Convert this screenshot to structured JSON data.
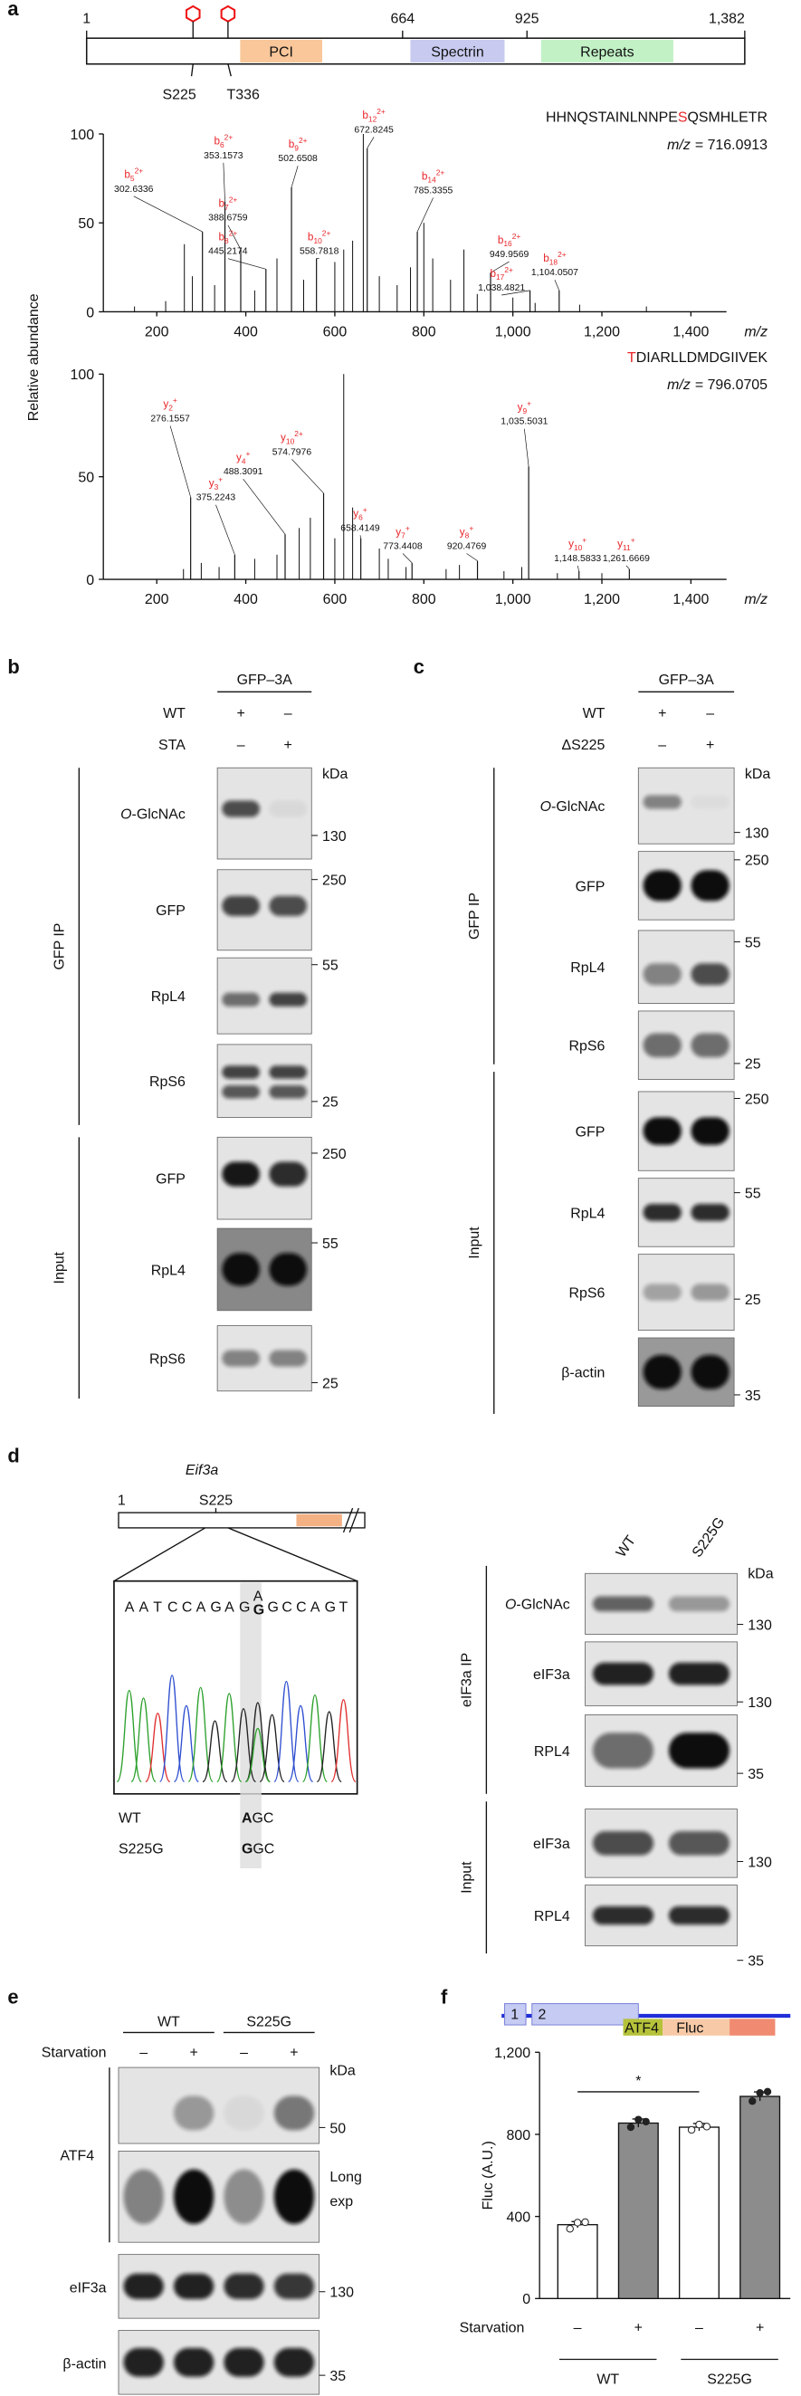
{
  "panel_a": {
    "label": "a",
    "protein_ticks": [
      1,
      664,
      925,
      {
        "value": 1382,
        "label": "1,382"
      }
    ],
    "domains": [
      "PCI",
      "Spectrin",
      "Repeats"
    ],
    "sites": [
      "S225",
      "T336"
    ],
    "y_label": "Relative abundance"
  },
  "chart_data": [
    {
      "type": "spectrum",
      "sequence": [
        "HHNQSTAINLNNPE",
        "S",
        "QSMHLETR"
      ],
      "highlight": 1,
      "precursor": [
        "m/z",
        "= 716.0913"
      ],
      "xlabel": "m/z",
      "xlim": [
        80,
        1480
      ],
      "ylim": [
        0,
        100
      ],
      "xticks": [
        200,
        400,
        600,
        800,
        {
          "value": 1000,
          "label": "1,000"
        },
        {
          "value": 1200,
          "label": "1,200"
        },
        {
          "value": 1400,
          "label": "1,400"
        }
      ],
      "yticks": [
        0,
        50,
        100
      ],
      "ions": [
        [
          "b",
          "5",
          "2+"
        ],
        [
          "b",
          "6",
          "2+"
        ],
        [
          "b",
          "7",
          "2+"
        ],
        [
          "b",
          "8",
          "2+"
        ],
        [
          "b",
          "9",
          "2+"
        ],
        [
          "b",
          "10",
          "2+"
        ],
        [
          "b",
          "12",
          "2+"
        ],
        [
          "b",
          "14",
          "2+"
        ],
        [
          "b",
          "16",
          "2+"
        ],
        [
          "b",
          "17",
          "2+"
        ],
        [
          "b",
          "18",
          "2+"
        ]
      ],
      "x": [
        302.6336,
        353.1573,
        388.6759,
        445.2174,
        502.6508,
        558.7818,
        672.8245,
        785.3355,
        949.9569,
        {
          "value": 1038.4821,
          "label": "1,038.4821"
        },
        {
          "value": 1104.0507,
          "label": "1,104.0507"
        }
      ],
      "values": [
        45,
        62,
        35,
        24,
        70,
        30,
        92,
        45,
        22,
        12,
        12
      ],
      "other_peaks_x": [
        150,
        220,
        262,
        280,
        330,
        420,
        470,
        530,
        600,
        620,
        640,
        664,
        700,
        740,
        770,
        800,
        820,
        860,
        890,
        920,
        1000,
        1050,
        1150,
        1300
      ],
      "other_peaks_values": [
        3,
        6,
        38,
        20,
        15,
        12,
        30,
        18,
        28,
        35,
        40,
        100,
        20,
        15,
        25,
        50,
        30,
        18,
        35,
        10,
        8,
        5,
        4,
        3
      ]
    },
    {
      "type": "spectrum",
      "sequence": [
        "T",
        "DIARLLDMDGIIVEK"
      ],
      "highlight": 0,
      "precursor": [
        "m/z",
        "= 796.0705"
      ],
      "xlabel": "m/z",
      "xlim": [
        80,
        1480
      ],
      "ylim": [
        0,
        100
      ],
      "xticks": [
        200,
        400,
        600,
        800,
        {
          "value": 1000,
          "label": "1,000"
        },
        {
          "value": 1200,
          "label": "1,200"
        },
        {
          "value": 1400,
          "label": "1,400"
        }
      ],
      "yticks": [
        0,
        50,
        100
      ],
      "ions": [
        [
          "y",
          "2",
          "+"
        ],
        [
          "y",
          "3",
          "+"
        ],
        [
          "y",
          "4",
          "+"
        ],
        [
          "y",
          "10",
          "2+"
        ],
        [
          "y",
          "6",
          "+"
        ],
        [
          "y",
          "7",
          "+"
        ],
        [
          "y",
          "8",
          "+"
        ],
        [
          "y",
          "9",
          "+"
        ],
        [
          "y",
          "10",
          "+"
        ],
        [
          "y",
          "11",
          "+"
        ]
      ],
      "x": [
        276.1557,
        375.2243,
        488.3091,
        574.7976,
        658.4149,
        773.4408,
        920.4769,
        {
          "value": 1035.5031,
          "label": "1,035.5031"
        },
        {
          "value": 1148.5833,
          "label": "1,148.5833"
        },
        {
          "value": 1261.6669,
          "label": "1,261.6669"
        }
      ],
      "values": [
        40,
        12,
        22,
        42,
        20,
        8,
        9,
        55,
        4,
        5
      ],
      "other_peaks_x": [
        260,
        300,
        340,
        420,
        470,
        520,
        545,
        600,
        620,
        640,
        700,
        720,
        760,
        850,
        880,
        980,
        1020,
        1100,
        1200
      ],
      "other_peaks_values": [
        5,
        8,
        6,
        10,
        12,
        25,
        30,
        20,
        100,
        35,
        15,
        10,
        6,
        5,
        7,
        4,
        6,
        3,
        3
      ]
    },
    {
      "type": "bar",
      "ylabel": "Fluc (A.U.)",
      "categories": [
        "–",
        "+",
        "–",
        "+"
      ],
      "groups": [
        "WT",
        "S225G"
      ],
      "row_label": "Starvation",
      "values": [
        360,
        855,
        835,
        985
      ],
      "errors": [
        15,
        20,
        18,
        22
      ],
      "points": [
        [
          340,
          370,
          372
        ],
        [
          835,
          872,
          862
        ],
        [
          822,
          848,
          838
        ],
        [
          962,
          1002,
          1008
        ]
      ],
      "colors": [
        "#ffffff",
        "#8c8c8c",
        "#ffffff",
        "#8c8c8c"
      ],
      "ylim": [
        0,
        1200
      ],
      "yticks": [
        0,
        400,
        800,
        {
          "value": 1200,
          "label": "1,200"
        }
      ],
      "significance": "*"
    }
  ],
  "panel_b": {
    "label": "b",
    "header": "GFP–3A",
    "rows": [
      {
        "label": "WT",
        "signs": [
          "+",
          "–"
        ]
      },
      {
        "label": "STA",
        "signs": [
          "–",
          "+"
        ]
      }
    ],
    "groups": [
      "GFP IP",
      "Input"
    ],
    "blots": [
      {
        "italic": "O",
        "rest": "-GlcNAc"
      },
      "GFP",
      "RpL4",
      "RpS6",
      "GFP",
      "RpL4",
      "RpS6"
    ],
    "markers": [
      "kDa",
      130,
      250,
      55,
      25,
      250,
      55,
      25
    ]
  },
  "panel_c": {
    "label": "c",
    "header": "GFP–3A",
    "rows": [
      {
        "label": "WT",
        "signs": [
          "+",
          "–"
        ]
      },
      {
        "label": "ΔS225",
        "signs": [
          "–",
          "+"
        ]
      }
    ],
    "groups": [
      "GFP IP",
      "Input"
    ],
    "blots": [
      {
        "italic": "O",
        "rest": "-GlcNAc"
      },
      "GFP",
      "RpL4",
      "RpS6",
      "GFP",
      "RpL4",
      "RpS6",
      "β-actin"
    ],
    "markers": [
      "kDa",
      130,
      250,
      55,
      25,
      250,
      55,
      25,
      35
    ]
  },
  "panel_d": {
    "label": "d",
    "gene": "Eif3a",
    "gene_ticks": [
      1,
      "S225"
    ],
    "sequence": [
      "A",
      "A",
      "T",
      "C",
      "C",
      "A",
      "G",
      "A",
      "G"
    ],
    "variant": [
      "A",
      "G"
    ],
    "sequence_end": [
      "G",
      "C",
      "C",
      "A",
      "G",
      "T"
    ],
    "genotypes": [
      {
        "label": "WT",
        "codon": [
          "A",
          "GC"
        ]
      },
      {
        "label": "S225G",
        "codon": [
          "G",
          "GC"
        ]
      }
    ],
    "lanes": [
      "WT",
      "S225G"
    ],
    "groups": [
      "eIF3a IP",
      "Input"
    ],
    "blots": [
      {
        "italic": "O",
        "rest": "-GlcNAc"
      },
      "eIF3a",
      "RPL4",
      "eIF3a",
      "RPL4"
    ],
    "markers": [
      "kDa",
      130,
      130,
      35,
      130,
      35
    ]
  },
  "panel_e": {
    "label": "e",
    "groups": [
      "WT",
      "S225G"
    ],
    "row_label": "Starvation",
    "lanes": [
      "–",
      "+",
      "–",
      "+"
    ],
    "group_label": "ATF4",
    "blots": [
      "eIF3a",
      "β-actin"
    ],
    "markers": [
      "kDa",
      50,
      "Long",
      "exp",
      130,
      35
    ]
  },
  "panel_f": {
    "label": "f",
    "schematic": [
      1,
      2,
      "ATF4",
      "Fluc"
    ]
  }
}
